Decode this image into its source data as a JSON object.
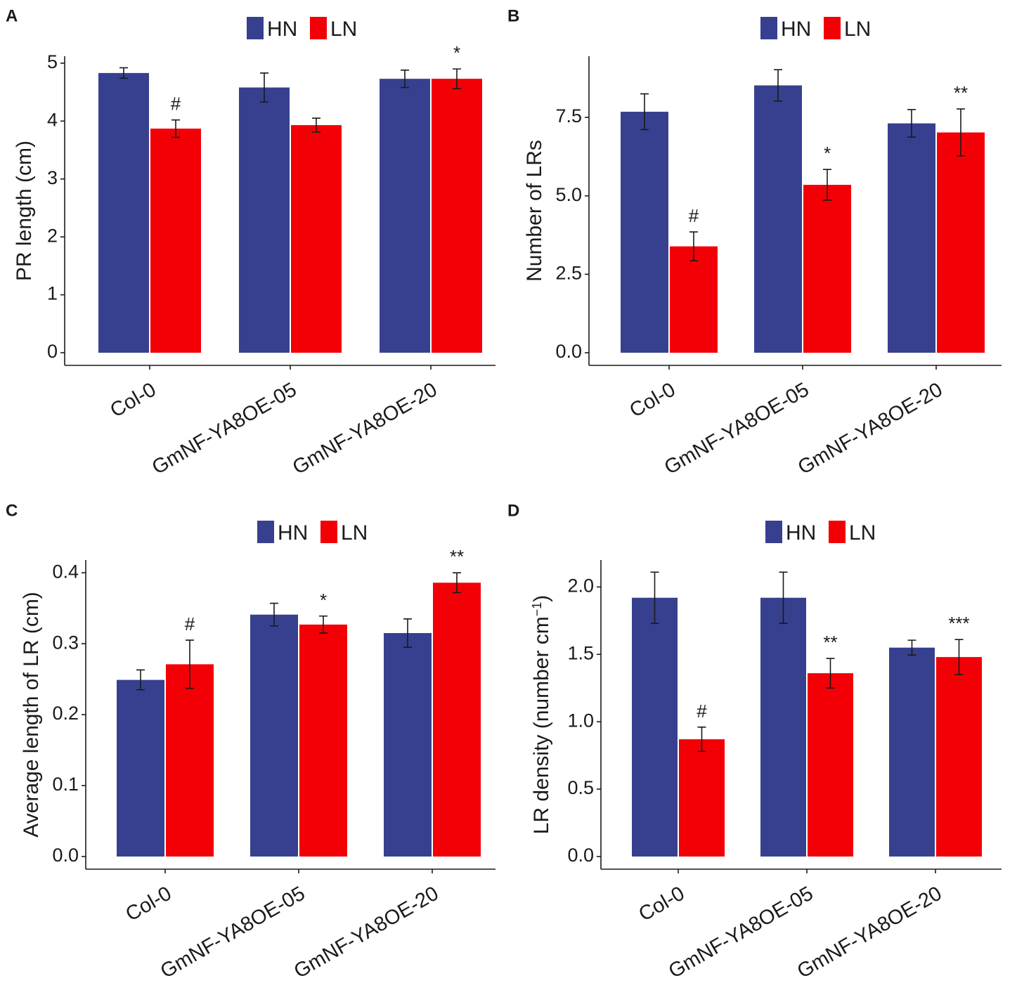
{
  "figure": {
    "legend": [
      {
        "label": "HN",
        "color": "#37408f"
      },
      {
        "label": "LN",
        "color": "#f20006"
      }
    ]
  },
  "chart_data": [
    {
      "panel": "A",
      "type": "bar",
      "ylabel": "PR length (cm)",
      "ylabel_sup": "",
      "ylabel_suffix": "",
      "categories": [
        "Col-0",
        "GmNF-YA8OE-05",
        "GmNF-YA8OE-20"
      ],
      "ylim": [
        0,
        5.12
      ],
      "yticks": [
        0,
        1,
        2,
        3,
        4,
        5
      ],
      "ytick_labels": [
        "0",
        "1",
        "2",
        "3",
        "4",
        "5"
      ],
      "series": [
        {
          "name": "HN",
          "values": [
            4.83,
            4.58,
            4.73
          ],
          "errors": [
            0.09,
            0.25,
            0.15
          ],
          "annotations": [
            "",
            "",
            ""
          ]
        },
        {
          "name": "LN",
          "values": [
            3.87,
            3.93,
            4.73
          ],
          "errors": [
            0.15,
            0.12,
            0.17
          ],
          "annotations": [
            "#",
            "",
            "*"
          ]
        }
      ]
    },
    {
      "panel": "B",
      "type": "bar",
      "ylabel": "Number of LRs",
      "ylabel_sup": "",
      "ylabel_suffix": "",
      "categories": [
        "Col-0",
        "GmNF-YA8OE-05",
        "GmNF-YA8OE-20"
      ],
      "ylim": [
        0,
        9.45
      ],
      "yticks": [
        0,
        2.5,
        5,
        7.5
      ],
      "ytick_labels": [
        "0.0",
        "2.5",
        "5.0",
        "7.5"
      ],
      "series": [
        {
          "name": "HN",
          "values": [
            7.68,
            8.52,
            7.31
          ],
          "errors": [
            0.57,
            0.5,
            0.44
          ],
          "annotations": [
            "",
            "",
            ""
          ]
        },
        {
          "name": "LN",
          "values": [
            3.39,
            5.35,
            7.02
          ],
          "errors": [
            0.46,
            0.49,
            0.75
          ],
          "annotations": [
            "#",
            "*",
            "**"
          ]
        }
      ]
    },
    {
      "panel": "C",
      "type": "bar",
      "ylabel": "Average length of LR (cm)",
      "ylabel_sup": "",
      "ylabel_suffix": "",
      "categories": [
        "Col-0",
        "GmNF-YA8OE-05",
        "GmNF-YA8OE-20"
      ],
      "ylim": [
        0,
        0.418
      ],
      "yticks": [
        0,
        0.1,
        0.2,
        0.3,
        0.4
      ],
      "ytick_labels": [
        "0.0",
        "0.1",
        "0.2",
        "0.3",
        "0.4"
      ],
      "series": [
        {
          "name": "HN",
          "values": [
            0.249,
            0.341,
            0.315
          ],
          "errors": [
            0.014,
            0.016,
            0.02
          ],
          "annotations": [
            "",
            "",
            ""
          ]
        },
        {
          "name": "LN",
          "values": [
            0.271,
            0.327,
            0.386
          ],
          "errors": [
            0.034,
            0.012,
            0.014
          ],
          "annotations": [
            "#",
            "*",
            "**"
          ]
        }
      ]
    },
    {
      "panel": "D",
      "type": "bar",
      "ylabel": "LR density (number cm",
      "ylabel_sup": "−1",
      "ylabel_suffix": ")",
      "categories": [
        "Col-0",
        "GmNF-YA8OE-05",
        "GmNF-YA8OE-20"
      ],
      "ylim": [
        0,
        2.2
      ],
      "yticks": [
        0,
        0.5,
        1,
        1.5,
        2
      ],
      "ytick_labels": [
        "0.0",
        "0.5",
        "1.0",
        "1.5",
        "2.0"
      ],
      "series": [
        {
          "name": "HN",
          "values": [
            1.92,
            1.92,
            1.55
          ],
          "errors": [
            0.19,
            0.19,
            0.055
          ],
          "annotations": [
            "",
            "",
            ""
          ]
        },
        {
          "name": "LN",
          "values": [
            0.87,
            1.36,
            1.48
          ],
          "errors": [
            0.09,
            0.11,
            0.13
          ],
          "annotations": [
            "#",
            "**",
            "***"
          ]
        }
      ]
    }
  ]
}
